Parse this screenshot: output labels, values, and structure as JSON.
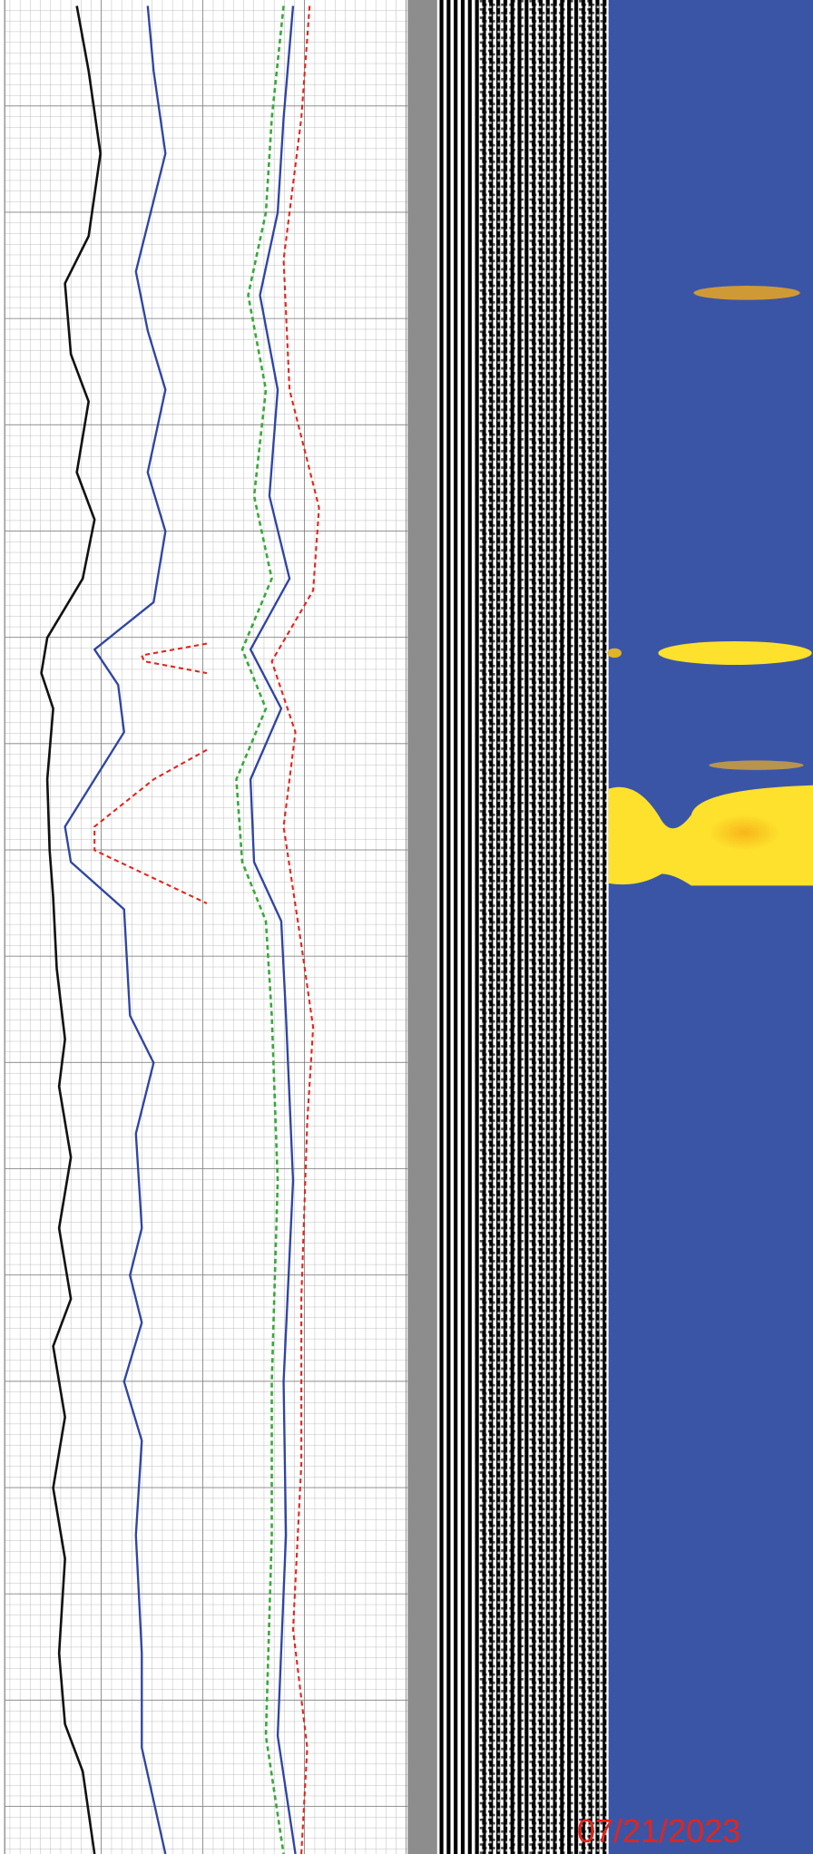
{
  "date_stamp": "07/21/2023"
}
